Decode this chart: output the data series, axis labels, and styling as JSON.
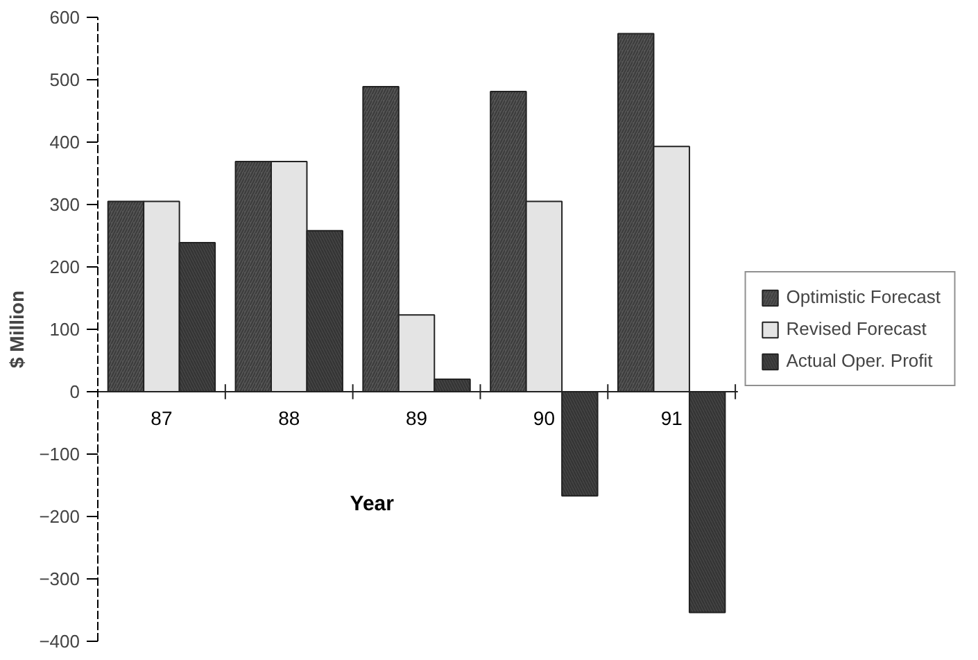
{
  "chart_data": {
    "type": "bar",
    "ylabel": "$ Million",
    "xlabel": "Year",
    "categories": [
      "87",
      "88",
      "89",
      "90",
      "91"
    ],
    "series": [
      {
        "name": "Optimistic Forecast",
        "color": "#555555",
        "values": [
          305,
          369,
          489,
          481,
          574
        ]
      },
      {
        "name": "Revised Forecast",
        "color": "#e4e4e4",
        "values": [
          305,
          369,
          123,
          305,
          393
        ]
      },
      {
        "name": "Actual Oper. Profit",
        "color": "#444444",
        "values": [
          239,
          258,
          20,
          -167,
          -354
        ]
      }
    ],
    "ylim": [
      -400,
      600
    ],
    "yticks": [
      -400,
      -300,
      -200,
      -100,
      0,
      100,
      200,
      300,
      400,
      500,
      600
    ],
    "grid": false,
    "legend": "right"
  }
}
